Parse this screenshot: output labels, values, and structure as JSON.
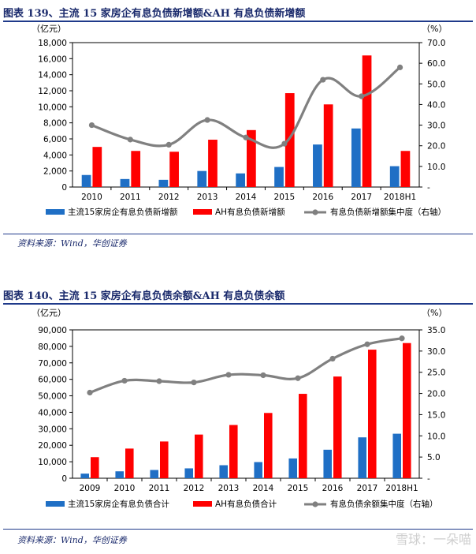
{
  "charts": [
    {
      "fig_title": "图表 139、主流 15 家房企有息负债新增额&AH 有息负债新增额",
      "source": "资料来源：Wind，华创证券",
      "left_unit": "（亿元）",
      "right_unit": "（%）"
    },
    {
      "fig_title": "图表 140、主流 15 家房企有息负债余额&AH 有息负债余额",
      "source": "资料来源：Wind，华创证券",
      "left_unit": "（亿元）",
      "right_unit": "（%）"
    }
  ],
  "watermark": "雪球：一朵喵",
  "colors": {
    "blue": "#1f6fc5",
    "red": "#ff0000",
    "gray": "#808080",
    "title": "#1a2a6c"
  },
  "chart_data": [
    {
      "type": "bar",
      "categories": [
        "2010",
        "2011",
        "2012",
        "2013",
        "2014",
        "2015",
        "2016",
        "2017",
        "2018H1"
      ],
      "series": [
        {
          "name": "主流15家房企有息负债新增额",
          "type": "bar",
          "axis": "left",
          "values": [
            1500,
            1000,
            900,
            2000,
            1700,
            2500,
            5300,
            7300,
            2600
          ]
        },
        {
          "name": "AH有息负债新增额",
          "type": "bar",
          "axis": "left",
          "values": [
            5000,
            4500,
            4400,
            5900,
            7100,
            11700,
            10300,
            16400,
            4500
          ]
        },
        {
          "name": "有息负债新增额集中度（右轴）",
          "type": "line",
          "axis": "right",
          "values": [
            30,
            23,
            20.5,
            32.5,
            24,
            21,
            52,
            44,
            58
          ]
        }
      ],
      "ylim_left": [
        0,
        18000
      ],
      "yticks_left": [
        "0",
        "2,000",
        "4,000",
        "6,000",
        "8,000",
        "10,000",
        "12,000",
        "14,000",
        "16,000",
        "18,000"
      ],
      "ylim_right": [
        0,
        70
      ],
      "yticks_right": [
        "-",
        "10.0",
        "20.0",
        "30.0",
        "40.0",
        "50.0",
        "60.0",
        "70.0"
      ],
      "legend": "bottom",
      "grid": false
    },
    {
      "type": "bar",
      "categories": [
        "2009",
        "2010",
        "2011",
        "2012",
        "2013",
        "2014",
        "2015",
        "2016",
        "2017",
        "2018H1"
      ],
      "series": [
        {
          "name": "主流15家房企有息负债合计",
          "type": "bar",
          "axis": "left",
          "values": [
            2800,
            4200,
            5000,
            6000,
            7900,
            9800,
            12000,
            17300,
            24800,
            27000
          ]
        },
        {
          "name": "AH有息负债合计",
          "type": "bar",
          "axis": "left",
          "values": [
            12800,
            18000,
            22300,
            26500,
            32300,
            39600,
            51200,
            61700,
            78000,
            82000
          ]
        },
        {
          "name": "有息负债余额集中度（右轴）",
          "type": "line",
          "axis": "right",
          "values": [
            20.2,
            23,
            22.9,
            22.6,
            24.4,
            24.3,
            23.6,
            28.2,
            31.6,
            33
          ]
        }
      ],
      "ylim_left": [
        0,
        90000
      ],
      "yticks_left": [
        "0",
        "10,000",
        "20,000",
        "30,000",
        "40,000",
        "50,000",
        "60,000",
        "70,000",
        "80,000",
        "90,000"
      ],
      "ylim_right": [
        0,
        35
      ],
      "yticks_right": [
        "-",
        "5.0",
        "10.0",
        "15.0",
        "20.0",
        "25.0",
        "30.0",
        "35.0"
      ],
      "legend": "bottom",
      "grid": false
    }
  ]
}
